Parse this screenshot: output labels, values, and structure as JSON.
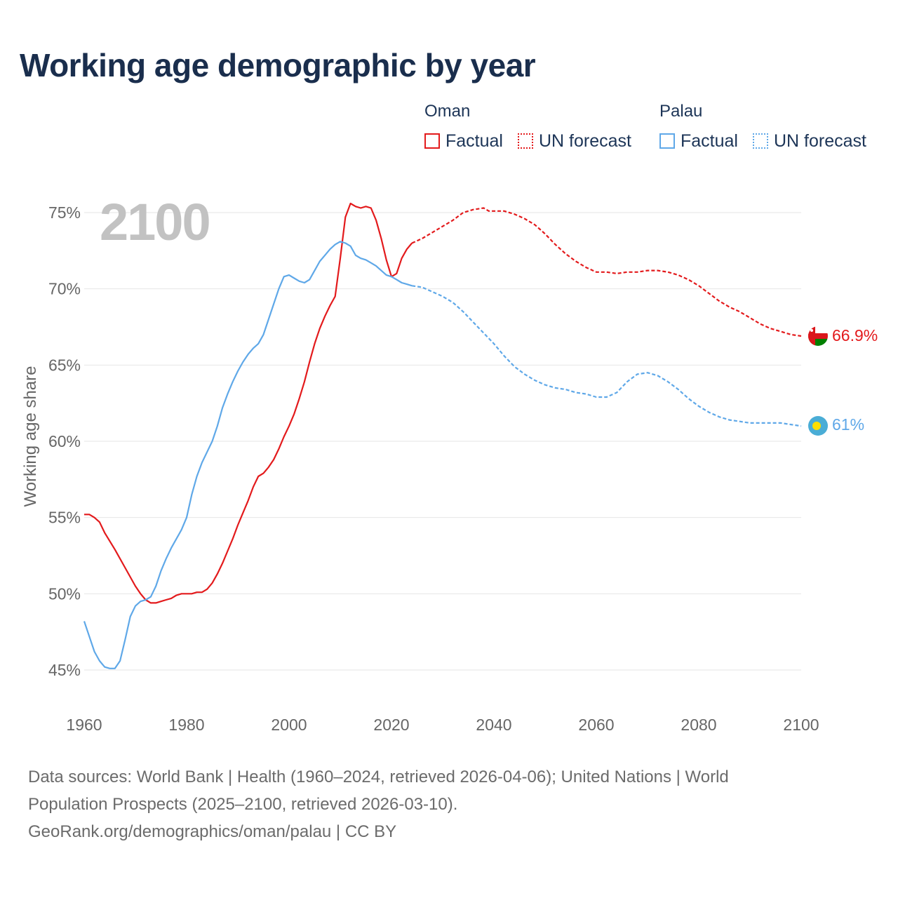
{
  "title": "Working age demographic by year",
  "legend": {
    "groups": [
      {
        "name": "Oman",
        "color": "#e31a1c",
        "factual_label": "Factual",
        "forecast_label": "UN forecast"
      },
      {
        "name": "Palau",
        "color": "#5fa8e8",
        "factual_label": "Factual",
        "forecast_label": "UN forecast"
      }
    ]
  },
  "year_overlay": "2100",
  "end_labels": {
    "oman": "66.9%",
    "palau": "61%"
  },
  "flag_icons": {
    "oman": "oman-flag-icon",
    "palau": "palau-flag-icon"
  },
  "footer": {
    "line1": "Data sources: World Bank | Health (1960–2024, retrieved 2026-04-06); United Nations | World",
    "line2": "Population Prospects (2025–2100, retrieved 2026-03-10).",
    "line3": "GeoRank.org/demographics/oman/palau | CC BY"
  },
  "chart_data": {
    "type": "line",
    "title": "Working age demographic by year",
    "xlabel": "",
    "ylabel": "Working age share",
    "xlim": [
      1960,
      2100
    ],
    "ylim": [
      44,
      76
    ],
    "x_ticks": [
      1960,
      1980,
      2000,
      2020,
      2040,
      2060,
      2080,
      2100
    ],
    "y_ticks": [
      45,
      50,
      55,
      60,
      65,
      70,
      75
    ],
    "y_tick_labels": [
      "45%",
      "50%",
      "55%",
      "60%",
      "65%",
      "70%",
      "75%"
    ],
    "grid": true,
    "legend_position": "top-right",
    "series": [
      {
        "name": "Oman",
        "kind": "Factual",
        "color": "#e31a1c",
        "dash": "solid",
        "x": [
          1960,
          1961,
          1962,
          1963,
          1964,
          1966,
          1968,
          1970,
          1971,
          1972,
          1973,
          1974,
          1975,
          1976,
          1977,
          1978,
          1979,
          1980,
          1981,
          1982,
          1983,
          1984,
          1985,
          1986,
          1987,
          1988,
          1989,
          1990,
          1991,
          1992,
          1993,
          1994,
          1995,
          1996,
          1997,
          1998,
          1999,
          2000,
          2001,
          2002,
          2003,
          2004,
          2005,
          2006,
          2007,
          2008,
          2009,
          2010,
          2011,
          2012,
          2013,
          2014,
          2015,
          2016,
          2017,
          2018,
          2019,
          2020,
          2021,
          2022,
          2023,
          2024
        ],
        "y": [
          55.2,
          55.2,
          55.0,
          54.7,
          54.0,
          52.9,
          51.7,
          50.5,
          50.0,
          49.6,
          49.4,
          49.4,
          49.5,
          49.6,
          49.7,
          49.9,
          50.0,
          50.0,
          50.0,
          50.1,
          50.1,
          50.3,
          50.7,
          51.3,
          52.0,
          52.8,
          53.6,
          54.5,
          55.3,
          56.1,
          57.0,
          57.7,
          57.9,
          58.3,
          58.8,
          59.5,
          60.3,
          61.0,
          61.8,
          62.8,
          63.9,
          65.2,
          66.4,
          67.4,
          68.2,
          68.9,
          69.5,
          72.0,
          74.7,
          75.6,
          75.4,
          75.3,
          75.4,
          75.3,
          74.5,
          73.3,
          71.9,
          70.8,
          71.0,
          72.0,
          72.6,
          73.0
        ]
      },
      {
        "name": "Oman",
        "kind": "UN forecast",
        "color": "#e31a1c",
        "dash": "dashed",
        "x": [
          2024,
          2026,
          2028,
          2030,
          2032,
          2034,
          2036,
          2038,
          2039,
          2040,
          2042,
          2044,
          2046,
          2048,
          2050,
          2052,
          2054,
          2056,
          2058,
          2060,
          2062,
          2064,
          2066,
          2068,
          2070,
          2072,
          2074,
          2076,
          2078,
          2080,
          2082,
          2084,
          2086,
          2088,
          2090,
          2092,
          2094,
          2096,
          2098,
          2100
        ],
        "y": [
          73.0,
          73.3,
          73.7,
          74.1,
          74.5,
          75.0,
          75.2,
          75.3,
          75.1,
          75.1,
          75.1,
          74.9,
          74.6,
          74.2,
          73.6,
          72.9,
          72.3,
          71.8,
          71.4,
          71.1,
          71.1,
          71.0,
          71.1,
          71.1,
          71.2,
          71.2,
          71.1,
          70.9,
          70.6,
          70.2,
          69.7,
          69.2,
          68.8,
          68.5,
          68.1,
          67.7,
          67.4,
          67.2,
          67.0,
          66.9
        ]
      },
      {
        "name": "Palau",
        "kind": "Factual",
        "color": "#5fa8e8",
        "dash": "solid",
        "x": [
          1960,
          1961,
          1962,
          1963,
          1964,
          1965,
          1966,
          1967,
          1968,
          1969,
          1970,
          1971,
          1972,
          1973,
          1974,
          1975,
          1976,
          1977,
          1978,
          1979,
          1980,
          1981,
          1982,
          1983,
          1984,
          1985,
          1986,
          1987,
          1988,
          1989,
          1990,
          1991,
          1992,
          1993,
          1994,
          1995,
          1996,
          1997,
          1998,
          1999,
          2000,
          2001,
          2002,
          2003,
          2004,
          2005,
          2006,
          2007,
          2008,
          2009,
          2010,
          2011,
          2012,
          2013,
          2014,
          2015,
          2016,
          2017,
          2018,
          2019,
          2020,
          2021,
          2022,
          2023,
          2024
        ],
        "y": [
          48.2,
          47.2,
          46.2,
          45.6,
          45.2,
          45.1,
          45.1,
          45.6,
          47.0,
          48.5,
          49.2,
          49.5,
          49.6,
          49.8,
          50.5,
          51.5,
          52.3,
          53.0,
          53.6,
          54.2,
          55.0,
          56.5,
          57.7,
          58.6,
          59.3,
          60.0,
          61.0,
          62.2,
          63.1,
          63.9,
          64.6,
          65.2,
          65.7,
          66.1,
          66.4,
          67.0,
          68.0,
          69.0,
          70.0,
          70.8,
          70.9,
          70.7,
          70.5,
          70.4,
          70.6,
          71.2,
          71.8,
          72.2,
          72.6,
          72.9,
          73.1,
          73.0,
          72.8,
          72.2,
          72.0,
          71.9,
          71.7,
          71.5,
          71.2,
          70.9,
          70.8,
          70.6,
          70.4,
          70.3,
          70.2
        ]
      },
      {
        "name": "Palau",
        "kind": "UN forecast",
        "color": "#5fa8e8",
        "dash": "dashed",
        "x": [
          2024,
          2026,
          2028,
          2030,
          2032,
          2034,
          2036,
          2038,
          2040,
          2042,
          2044,
          2046,
          2048,
          2050,
          2052,
          2054,
          2056,
          2058,
          2060,
          2062,
          2064,
          2066,
          2068,
          2070,
          2072,
          2074,
          2076,
          2078,
          2080,
          2082,
          2084,
          2086,
          2088,
          2090,
          2092,
          2094,
          2096,
          2098,
          2100
        ],
        "y": [
          70.2,
          70.1,
          69.8,
          69.5,
          69.1,
          68.5,
          67.8,
          67.1,
          66.4,
          65.6,
          64.9,
          64.4,
          64.0,
          63.7,
          63.5,
          63.4,
          63.2,
          63.1,
          62.9,
          62.9,
          63.2,
          63.9,
          64.4,
          64.5,
          64.3,
          63.9,
          63.4,
          62.8,
          62.3,
          61.9,
          61.6,
          61.4,
          61.3,
          61.2,
          61.2,
          61.2,
          61.2,
          61.1,
          61.0
        ]
      }
    ]
  }
}
